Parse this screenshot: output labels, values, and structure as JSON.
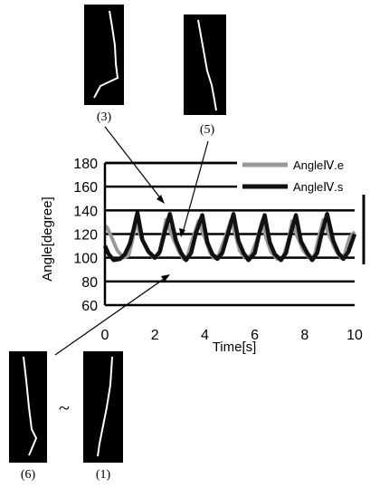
{
  "chart_data": {
    "type": "line",
    "xlabel": "Time[s]",
    "ylabel": "Angle[degree]",
    "xlim": [
      0,
      10
    ],
    "ylim": [
      60,
      180
    ],
    "x_ticks": [
      "0",
      "2",
      "4",
      "6",
      "8",
      "10"
    ],
    "y_ticks": [
      "60",
      "80",
      "100",
      "120",
      "140",
      "160",
      "180"
    ],
    "grid": "horizontal",
    "legend_position": "top-right",
    "series": [
      {
        "name": "AngleⅣ.e",
        "color": "#999999",
        "x": [
          0.0,
          0.1,
          0.25,
          0.5,
          0.75,
          0.95,
          1.1,
          1.25,
          1.45,
          1.7,
          1.95,
          2.15,
          2.3,
          2.45,
          2.7,
          2.95,
          3.15,
          3.3,
          3.5,
          3.75,
          4.0,
          4.2,
          4.35,
          4.55,
          4.8,
          5.05,
          5.25,
          5.4,
          5.6,
          5.85,
          6.1,
          6.3,
          6.45,
          6.65,
          6.9,
          7.15,
          7.35,
          7.5,
          7.7,
          7.95,
          8.2,
          8.4,
          8.55,
          8.75,
          9.0,
          9.25,
          9.45,
          9.6,
          9.8,
          10.0
        ],
        "y": [
          127,
          125,
          118,
          106,
          100,
          102,
          115,
          130,
          117,
          106,
          100,
          102,
          116,
          132,
          118,
          106,
          99,
          101,
          115,
          131,
          117,
          105,
          100,
          102,
          116,
          132,
          118,
          106,
          100,
          102,
          116,
          131,
          117,
          105,
          99,
          101,
          115,
          131,
          118,
          106,
          100,
          102,
          116,
          132,
          118,
          106,
          100,
          103,
          117,
          122
        ]
      },
      {
        "name": "AngleⅣ.s",
        "color": "#111111",
        "x": [
          0.0,
          0.15,
          0.35,
          0.6,
          0.8,
          1.0,
          1.15,
          1.3,
          1.5,
          1.75,
          2.0,
          2.2,
          2.4,
          2.6,
          2.85,
          3.05,
          3.25,
          3.45,
          3.65,
          3.9,
          4.1,
          4.3,
          4.5,
          4.7,
          4.95,
          5.15,
          5.35,
          5.55,
          5.75,
          6.0,
          6.2,
          6.4,
          6.6,
          6.8,
          7.05,
          7.25,
          7.45,
          7.65,
          7.85,
          8.1,
          8.3,
          8.5,
          8.7,
          8.9,
          9.15,
          9.35,
          9.55,
          9.75,
          10.0
        ],
        "y": [
          110,
          103,
          98,
          99,
          103,
          112,
          124,
          138,
          115,
          105,
          100,
          105,
          122,
          137,
          114,
          104,
          98,
          104,
          121,
          136,
          113,
          103,
          99,
          104,
          122,
          137,
          114,
          104,
          98,
          104,
          122,
          136,
          113,
          103,
          98,
          104,
          121,
          136,
          114,
          104,
          98,
          104,
          122,
          137,
          114,
          104,
          99,
          105,
          120
        ]
      }
    ]
  },
  "thumbnails": {
    "top_left_label": "(3)",
    "top_right_label": "(5)",
    "bottom_left_label": "(6)",
    "bottom_right_label": "(1)",
    "tilde": "~"
  }
}
